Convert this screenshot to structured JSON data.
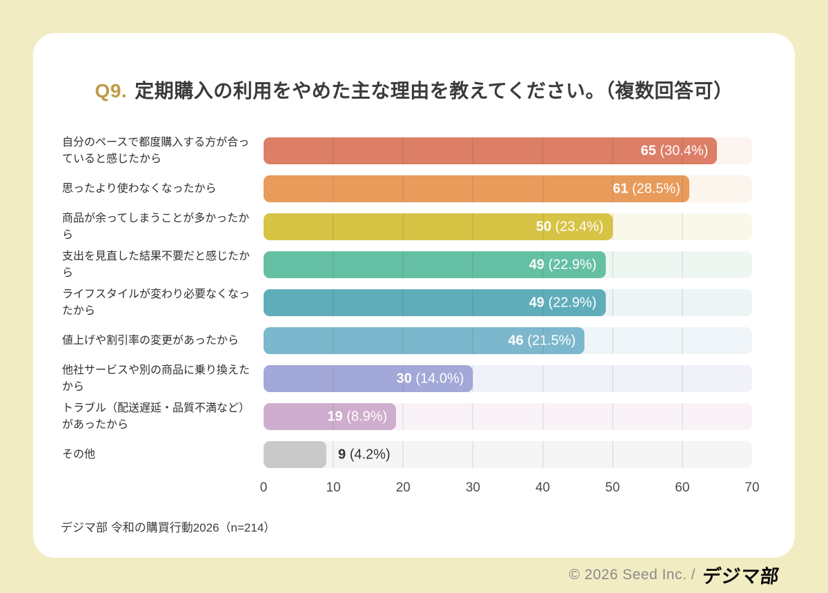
{
  "page": {
    "background": "#f2ecc2",
    "card_background": "#ffffff",
    "accent_gold": "#bf9b45"
  },
  "title": {
    "prefix": "Q9.",
    "text": "定期購入の利用をやめた主な理由を教えてください。（複数回答可）"
  },
  "source": "デジマ部 令和の購買行動2026（n=214）",
  "footer": {
    "copyright": "© 2026 Seed Inc. /",
    "logo": "デジマ部"
  },
  "chart_data": {
    "type": "bar",
    "orientation": "horizontal",
    "title": "Q9. 定期購入の利用をやめた主な理由を教えてください。（複数回答可）",
    "n": 214,
    "xlim": [
      0,
      70
    ],
    "ticks": [
      0,
      10,
      20,
      30,
      40,
      50,
      60,
      70
    ],
    "gridlines": [
      10,
      20,
      30,
      40,
      50,
      60
    ],
    "grid": true,
    "legend": false,
    "rows": [
      {
        "category": "自分のペースで都度購入する方が合っていると感じたから",
        "value": 65,
        "percent": 30.4,
        "count_label": "65",
        "pct_label": "(30.4%)",
        "color": "#dd7e66",
        "track_color": "#fbf4f0",
        "label_outside": false
      },
      {
        "category": "思ったより使わなくなったから",
        "value": 61,
        "percent": 28.5,
        "count_label": "61",
        "pct_label": "(28.5%)",
        "color": "#e89b5b",
        "track_color": "#fcf5ed",
        "label_outside": false
      },
      {
        "category": "商品が余ってしまうことが多かったから",
        "value": 50,
        "percent": 23.4,
        "count_label": "50",
        "pct_label": "(23.4%)",
        "color": "#d7c344",
        "track_color": "#faf8e9",
        "label_outside": false
      },
      {
        "category": "支出を見直した結果不要だと感じたから",
        "value": 49,
        "percent": 22.9,
        "count_label": "49",
        "pct_label": "(22.9%)",
        "color": "#64bfa3",
        "track_color": "#eef6f2",
        "label_outside": false
      },
      {
        "category": "ライフスタイルが変わり必要なくなったから",
        "value": 49,
        "percent": 22.9,
        "count_label": "49",
        "pct_label": "(22.9%)",
        "color": "#5fadba",
        "track_color": "#edf4f5",
        "label_outside": false
      },
      {
        "category": "値上げや割引率の変更があったから",
        "value": 46,
        "percent": 21.5,
        "count_label": "46",
        "pct_label": "(21.5%)",
        "color": "#7cb8cd",
        "track_color": "#eff5f8",
        "label_outside": false
      },
      {
        "category": "他社サービスや別の商品に乗り換えたから",
        "value": 30,
        "percent": 14.0,
        "count_label": "30",
        "pct_label": "(14.0%)",
        "color": "#a2a8d8",
        "track_color": "#f1f1f9",
        "label_outside": false
      },
      {
        "category": "トラブル（配送遅延・品質不満など）があったから",
        "value": 19,
        "percent": 8.9,
        "count_label": "19",
        "pct_label": "(8.9%)",
        "color": "#cfadce",
        "track_color": "#f9f3f8",
        "label_outside": false
      },
      {
        "category": "その他",
        "value": 9,
        "percent": 4.2,
        "count_label": "9",
        "pct_label": "(4.2%)",
        "color": "#c9c9c9",
        "track_color": "#f5f5f5",
        "label_outside": true
      }
    ]
  }
}
